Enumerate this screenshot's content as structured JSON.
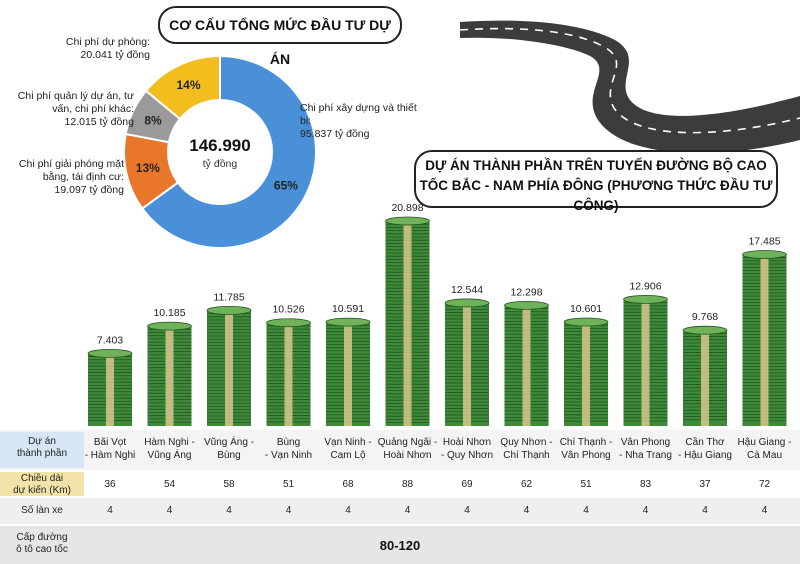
{
  "donut": {
    "title": "CƠ CẤU TỔNG MỨC ĐẦU TƯ DỰ ÁN",
    "total_value": "146.990",
    "total_unit": "tỷ đồng",
    "slices": [
      {
        "name": "Chi phí xây dựng và thiết bị:",
        "amount": "95.837 tỷ đồng",
        "percent": 65,
        "label": "65%",
        "color": "#4a90d9"
      },
      {
        "name": "Chi phí giải phóng mặt bằng, tái định cư:",
        "amount": "19.097 tỷ đồng",
        "percent": 13,
        "label": "13%",
        "color": "#e8762b"
      },
      {
        "name": "Chi phí quản lý dự án, tư vấn, chi phí khác:",
        "amount": "12.015 tỷ đồng",
        "percent": 8,
        "label": "8%",
        "color": "#9a9a9a"
      },
      {
        "name": "Chi phí dự phòng:",
        "amount": "20.041 tỷ đồng",
        "percent": 14,
        "label": "14%",
        "color": "#f2bd1d"
      }
    ]
  },
  "chart_data": {
    "type": "bar",
    "title": "DỰ ÁN THÀNH PHẦN TRÊN TUYẾN ĐƯỜNG BỘ CAO TỐC BẮC - NAM PHÍA ĐÔNG (PHƯƠNG THỨC ĐẦU TƯ CÔNG)",
    "categories": [
      "Bãi Vọt - Hàm Nghi",
      "Hàm Nghi - Vũng Áng",
      "Vũng Áng - Bùng",
      "Bùng - Vạn Ninh",
      "Vạn Ninh - Cam Lộ",
      "Quảng Ngãi - Hoài Nhơn",
      "Hoài Nhơn - Quy Nhơn",
      "Quy Nhơn - Chí Thạnh",
      "Chí Thạnh - Vân Phong",
      "Vân Phong - Nha Trang",
      "Cần Thơ - Hậu Giang",
      "Hậu Giang - Cà Mau"
    ],
    "category_lines": [
      [
        "Bãi Vọt",
        "- Hàm Nghi"
      ],
      [
        "Hàm Nghi -",
        "Vũng Áng"
      ],
      [
        "Vũng Áng -",
        "Bùng"
      ],
      [
        "Bùng",
        "- Vạn Ninh"
      ],
      [
        "Vạn Ninh -",
        "Cam Lộ"
      ],
      [
        "Quảng Ngãi -",
        "Hoài Nhơn"
      ],
      [
        "Hoài Nhơn",
        "- Quy Nhơn"
      ],
      [
        "Quy Nhơn -",
        "Chí Thạnh"
      ],
      [
        "Chí Thạnh -",
        "Vân Phong"
      ],
      [
        "Vân Phong",
        "- Nha Trang"
      ],
      [
        "Cần Thơ",
        "- Hậu Giang"
      ],
      [
        "Hậu Giang -",
        "Cà Mau"
      ]
    ],
    "values": [
      7403,
      10185,
      11785,
      10526,
      10591,
      20898,
      12544,
      12298,
      10601,
      12906,
      9768,
      17485
    ],
    "value_labels": [
      "7.403",
      "10.185",
      "11.785",
      "10.526",
      "10.591",
      "20.898",
      "12.544",
      "12.298",
      "10.601",
      "12.906",
      "9.768",
      "17.485"
    ],
    "ylim": [
      0,
      21000
    ],
    "xlabel": "",
    "ylabel": ""
  },
  "table": {
    "project_label": [
      "Dự án",
      "thành phần"
    ],
    "length_label": [
      "Chiều dài",
      "dự kiến (Km)"
    ],
    "lengths": [
      "36",
      "54",
      "58",
      "51",
      "68",
      "88",
      "69",
      "62",
      "51",
      "83",
      "37",
      "72"
    ],
    "lanes_label": "Số làn xe",
    "lanes": [
      "4",
      "4",
      "4",
      "4",
      "4",
      "4",
      "4",
      "4",
      "4",
      "4",
      "4",
      "4"
    ],
    "class_label": [
      "Cấp đường",
      "ô tô cao tốc"
    ],
    "class_value": "80-120"
  },
  "colors": {
    "money_green": "#3f8a3a",
    "money_dark": "#21561f",
    "band": "#d8c78f",
    "road": "#3c3c3c",
    "table_blue": "#d6e6f4",
    "table_gold": "#f3e3a8",
    "table_grey": "#e6e6e6"
  }
}
